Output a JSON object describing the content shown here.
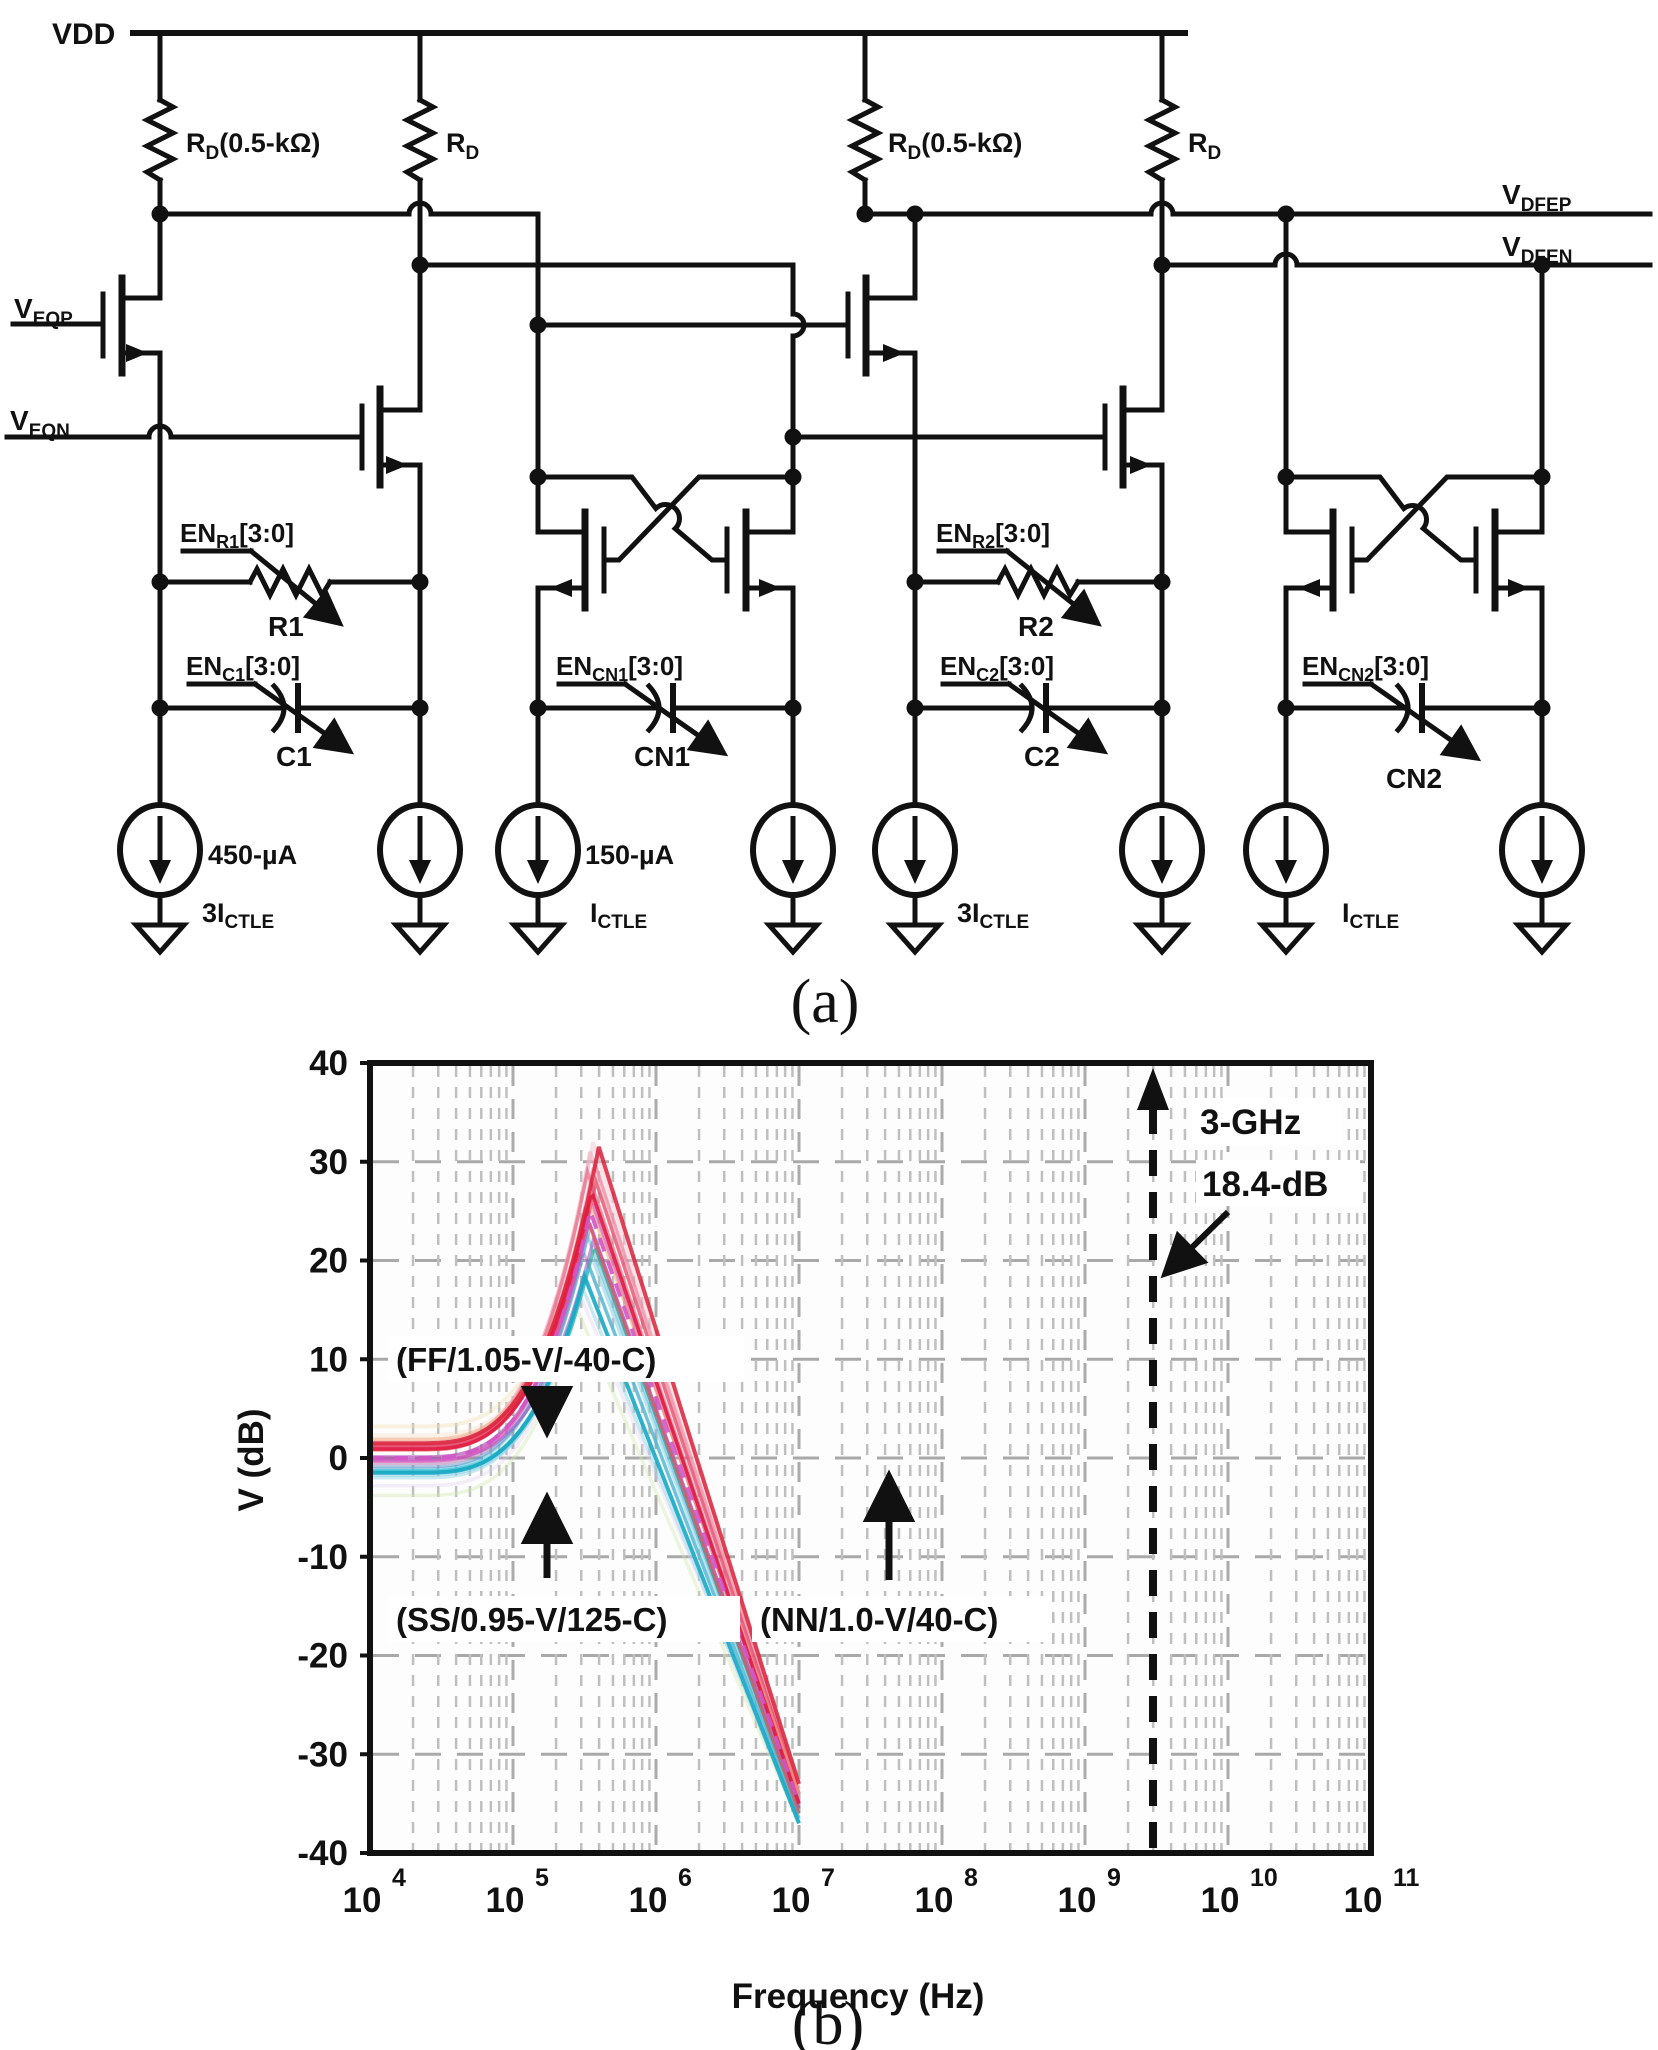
{
  "figure": {
    "panel_a_label": "(a)",
    "panel_b_label": "(b)"
  },
  "schematic": {
    "vdd": "VDD",
    "rd_tuned": {
      "pre": "R",
      "sub": "D",
      "post": "(0.5-kΩ)"
    },
    "rd_plain": {
      "pre": "R",
      "sub": "D",
      "post": ""
    },
    "veqp": {
      "pre": "V",
      "sub": "EQP"
    },
    "veqn": {
      "pre": "V",
      "sub": "EQN"
    },
    "vdfep": {
      "pre": "V",
      "sub": "DFEP"
    },
    "vdfen": {
      "pre": "V",
      "sub": "DFEN"
    },
    "en_r1": {
      "pre": "EN",
      "sub": "R1",
      "post": "[3:0]"
    },
    "r1": "R1",
    "en_c1": {
      "pre": "EN",
      "sub": "C1",
      "post": "[3:0]"
    },
    "c1": "C1",
    "en_cn1": {
      "pre": "EN",
      "sub": "CN1",
      "post": "[3:0]"
    },
    "cn1": "CN1",
    "en_r2": {
      "pre": "EN",
      "sub": "R2",
      "post": "[3:0]"
    },
    "r2": "R2",
    "en_c2": {
      "pre": "EN",
      "sub": "C2",
      "post": "[3:0]"
    },
    "c2": "C2",
    "en_cn2": {
      "pre": "EN",
      "sub": "CN2",
      "post": "[3:0]"
    },
    "cn2": "CN2",
    "bias_450": "450-µA",
    "bias_150": "150-µA",
    "i3ctle": {
      "pre": "3I",
      "sub": "CTLE"
    },
    "ictle": {
      "pre": "I",
      "sub": "CTLE"
    }
  },
  "chart_data": {
    "type": "line",
    "title": "",
    "xlabel": "Frequency (Hz)",
    "ylabel": "V (dB)",
    "x_scale": "log",
    "xlim": [
      10000,
      100000000000
    ],
    "ylim": [
      -40,
      40
    ],
    "grid": "dashed",
    "legend": "none",
    "y_ticks": [
      40,
      30,
      20,
      10,
      0,
      -10,
      -20,
      -30,
      -40
    ],
    "x_ticks": [
      {
        "base": "10",
        "exp": "4"
      },
      {
        "base": "10",
        "exp": "5"
      },
      {
        "base": "10",
        "exp": "6"
      },
      {
        "base": "10",
        "exp": "7"
      },
      {
        "base": "10",
        "exp": "8"
      },
      {
        "base": "10",
        "exp": "9"
      },
      {
        "base": "10",
        "exp": "10"
      },
      {
        "base": "10",
        "exp": "11"
      }
    ],
    "marker_line": {
      "freq_hz": 3000000000,
      "label": "3-GHz"
    },
    "peak_annotation": {
      "label": "18.4-dB",
      "value_db": 18.4,
      "freq_hz": 3000000000
    },
    "corner_annotations": {
      "ff": "(FF/1.05-V/-40-C)",
      "ss": "(SS/0.95-V/125-C)",
      "nn": "(NN/1.0-V/40-C)"
    },
    "flat_gain_db": {
      "ff": 1.0,
      "nn": 0.0,
      "ss": -1.5
    },
    "curves": [
      {
        "color": "#f2dfae",
        "flat": 3.2,
        "peak": 24,
        "tp": 5.5,
        "end": -34,
        "w": 4,
        "a": 0.4,
        "dash": false
      },
      {
        "color": "#cfe7ac",
        "flat": -3.8,
        "peak": 15,
        "tp": 5.45,
        "end": -37,
        "w": 3.5,
        "a": 0.4,
        "dash": false
      },
      {
        "color": "#f4d9c2",
        "flat": 2.3,
        "peak": 28,
        "tp": 5.58,
        "end": -33,
        "w": 4,
        "a": 0.35,
        "dash": false
      },
      {
        "color": "#dccdee",
        "flat": -2.8,
        "peak": 16.5,
        "tp": 5.47,
        "end": -36.5,
        "w": 3.5,
        "a": 0.35,
        "dash": false
      },
      {
        "color": "#f8c6d2",
        "flat": 1.6,
        "peak": 32,
        "tp": 5.56,
        "end": -33,
        "w": 4,
        "a": 0.5,
        "dash": false
      },
      {
        "color": "#f2a9bc",
        "flat": 1.3,
        "peak": 31,
        "tp": 5.54,
        "end": -34,
        "w": 4,
        "a": 0.6,
        "dash": false
      },
      {
        "color": "#9fd8ea",
        "flat": -2.0,
        "peak": 17.5,
        "tp": 5.48,
        "end": -37,
        "w": 3.5,
        "a": 0.55,
        "dash": false
      },
      {
        "color": "#86d2e6",
        "flat": -1.7,
        "peak": 20.5,
        "tp": 5.55,
        "end": -36,
        "w": 4,
        "a": 0.55,
        "dash": false
      },
      {
        "color": "#ee8aa2",
        "flat": 1.4,
        "peak": 30,
        "tp": 5.57,
        "end": -33.5,
        "w": 3.5,
        "a": 0.65,
        "dash": false
      },
      {
        "color": "#5fc0d8",
        "flat": -1.1,
        "peak": 22.5,
        "tp": 5.52,
        "end": -36,
        "w": 3,
        "a": 0.55,
        "dash": false
      },
      {
        "color": "#b57cb2",
        "flat": -0.6,
        "peak": 21,
        "tp": 5.49,
        "end": -36.5,
        "w": 3,
        "a": 0.55,
        "dash": false
      },
      {
        "color": "#5b8fca",
        "flat": -0.9,
        "peak": 23.5,
        "tp": 5.54,
        "end": -35.5,
        "w": 3,
        "a": 0.5,
        "dash": false
      },
      {
        "color": "#9a5ec9",
        "flat": -0.2,
        "peak": 22,
        "tp": 5.56,
        "end": -36,
        "w": 3.2,
        "a": 0.6,
        "dash": false
      },
      {
        "color": "#e86b86",
        "flat": 1.1,
        "peak": 29,
        "tp": 5.52,
        "end": -35,
        "w": 3.5,
        "a": 0.7,
        "dash": false
      },
      {
        "color": "#b044ae",
        "flat": 0.1,
        "peak": 24,
        "tp": 5.53,
        "end": -35.5,
        "w": 3.5,
        "a": 0.65,
        "dash": false
      },
      {
        "color": "#2aa796",
        "flat": -1.4,
        "peak": 21.5,
        "tp": 5.57,
        "end": -36,
        "w": 3.2,
        "a": 0.65,
        "dash": false
      },
      {
        "color": "#44c4da",
        "flat": -1.3,
        "peak": 19.5,
        "tp": 5.53,
        "end": -36.5,
        "w": 3.6,
        "a": 0.7,
        "dash": false
      },
      {
        "color": "#d84fb8",
        "flat": -0.3,
        "peak": 26,
        "tp": 5.55,
        "end": -35,
        "w": 3.5,
        "a": 0.7,
        "dash": false
      },
      {
        "color": "#e4476b",
        "flat": 1.2,
        "peak": 28,
        "tp": 5.58,
        "end": -34,
        "w": 3.5,
        "a": 0.75,
        "dash": false
      },
      {
        "color": "#ef5454",
        "flat": 0.8,
        "peak": 25,
        "tp": 5.5,
        "end": -36,
        "w": 3,
        "a": 0.65,
        "dash": false
      },
      {
        "color": "#f0a478",
        "flat": 1.9,
        "peak": 26,
        "tp": 5.53,
        "end": -34,
        "w": 3.5,
        "a": 0.55,
        "dash": false
      },
      {
        "color": "#d92038",
        "flat": 1.5,
        "peak": 31.5,
        "tp": 5.6,
        "end": -33,
        "w": 4,
        "a": 0.85,
        "dash": false
      },
      {
        "color": "#17a8c4",
        "flat": -1.5,
        "peak": 18.4,
        "tp": 5.5,
        "end": -37,
        "w": 4,
        "a": 0.9,
        "dash": false
      },
      {
        "color": "#e01a40",
        "flat": 0.9,
        "peak": 27,
        "tp": 5.55,
        "end": -35,
        "w": 3.6,
        "a": 0.9,
        "dash": false
      },
      {
        "color": "#d355c8",
        "flat": 0.0,
        "peak": 25,
        "tp": 5.54,
        "end": -35,
        "w": 4,
        "a": 0.9,
        "dash": true
      }
    ]
  }
}
